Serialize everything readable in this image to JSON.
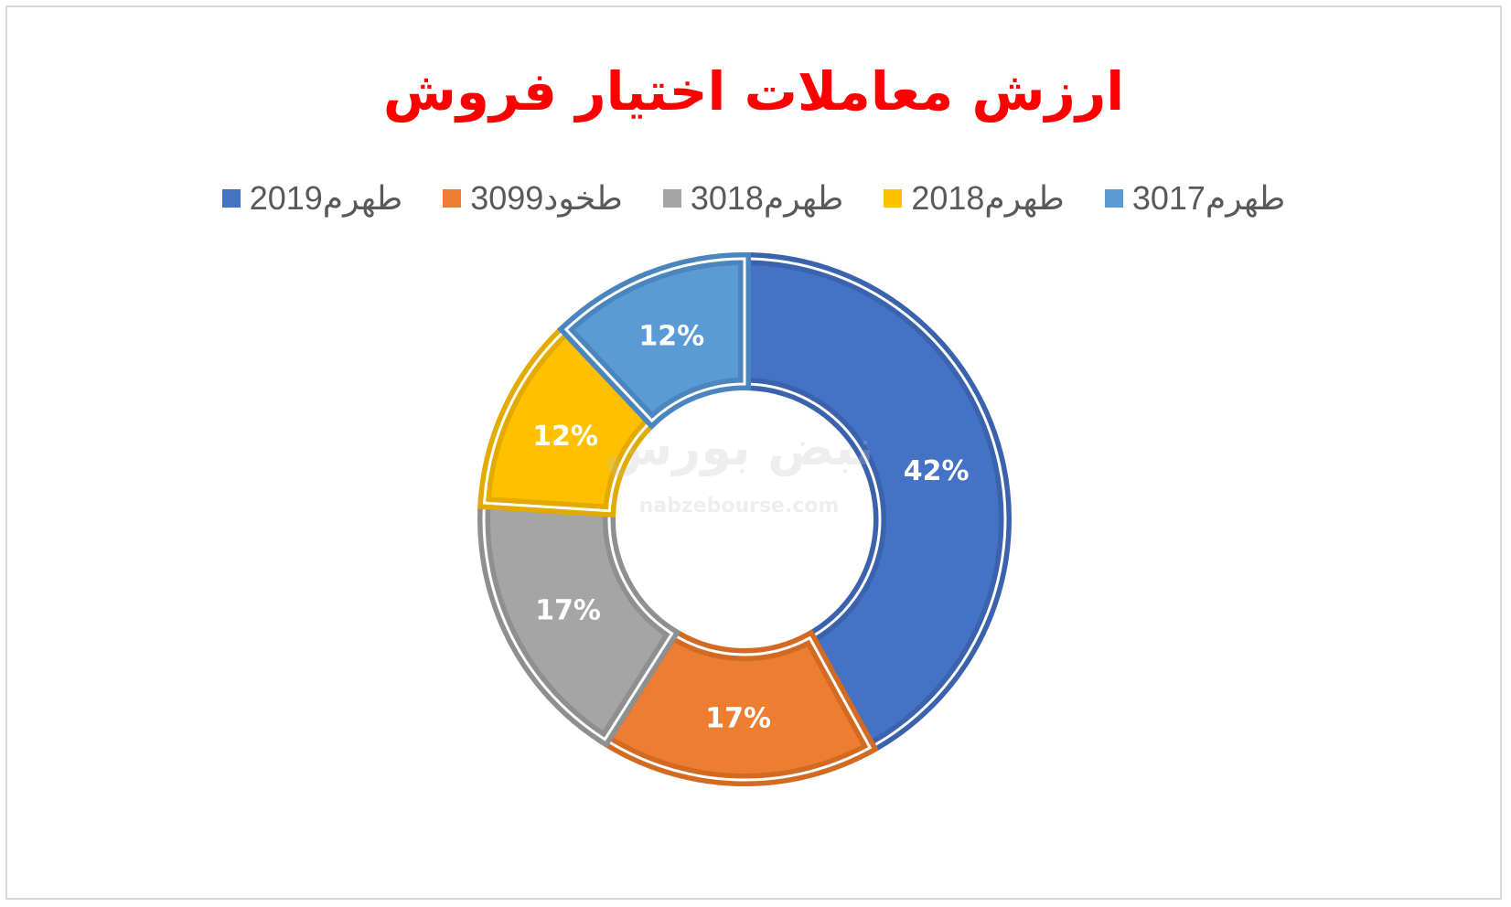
{
  "title": "ارزش معاملات اختیار فروش",
  "chart_data": {
    "type": "pie",
    "title": "ارزش معاملات اختیار فروش",
    "legend_position": "top",
    "donut": true,
    "slices": [
      {
        "name": "طهرم2019",
        "value": 42,
        "label": "42%",
        "color": "#4472c4",
        "edge": "#3a62ad"
      },
      {
        "name": "طخود3099",
        "value": 17,
        "label": "17%",
        "color": "#ed7d31",
        "edge": "#d36a22"
      },
      {
        "name": "طهرم3018",
        "value": 17,
        "label": "17%",
        "color": "#a5a5a5",
        "edge": "#8f8f8f"
      },
      {
        "name": "طهرم2018",
        "value": 12,
        "label": "12%",
        "color": "#ffc000",
        "edge": "#e3aa00"
      },
      {
        "name": "طهرم3017",
        "value": 12,
        "label": "12%",
        "color": "#5b9bd5",
        "edge": "#4a86bd"
      }
    ]
  },
  "watermark": {
    "text": "نبض بورس",
    "url": "nabzebourse.com"
  }
}
